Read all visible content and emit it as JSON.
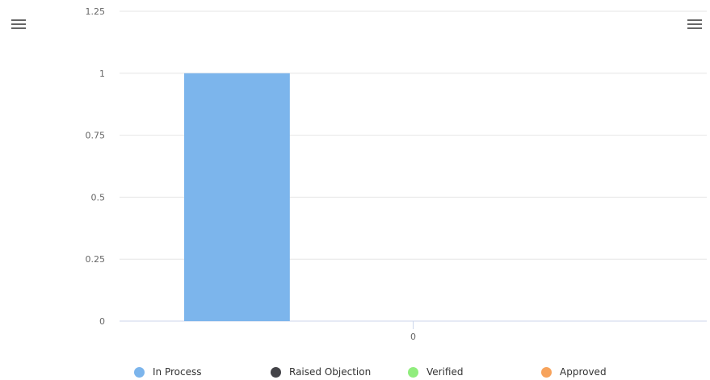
{
  "toolbar": {
    "left_menu_icon": "hamburger-menu-icon",
    "right_menu_icon": "hamburger-menu-icon"
  },
  "chart_data": {
    "type": "bar",
    "categories": [
      "0"
    ],
    "series": [
      {
        "name": "In Process",
        "values": [
          1
        ],
        "color": "#7cb5ec"
      },
      {
        "name": "Raised Objection",
        "values": [
          0
        ],
        "color": "#434348"
      },
      {
        "name": "Verified",
        "values": [
          0
        ],
        "color": "#90ed7d"
      },
      {
        "name": "Approved",
        "values": [
          0
        ],
        "color": "#f7a35c"
      }
    ],
    "yticks": [
      "0",
      "0.25",
      "0.5",
      "0.75",
      "1",
      "1.25"
    ],
    "ylim": [
      0,
      1.25
    ],
    "title": "",
    "xlabel": "",
    "ylabel": "",
    "grid": true,
    "legend_position": "bottom"
  }
}
